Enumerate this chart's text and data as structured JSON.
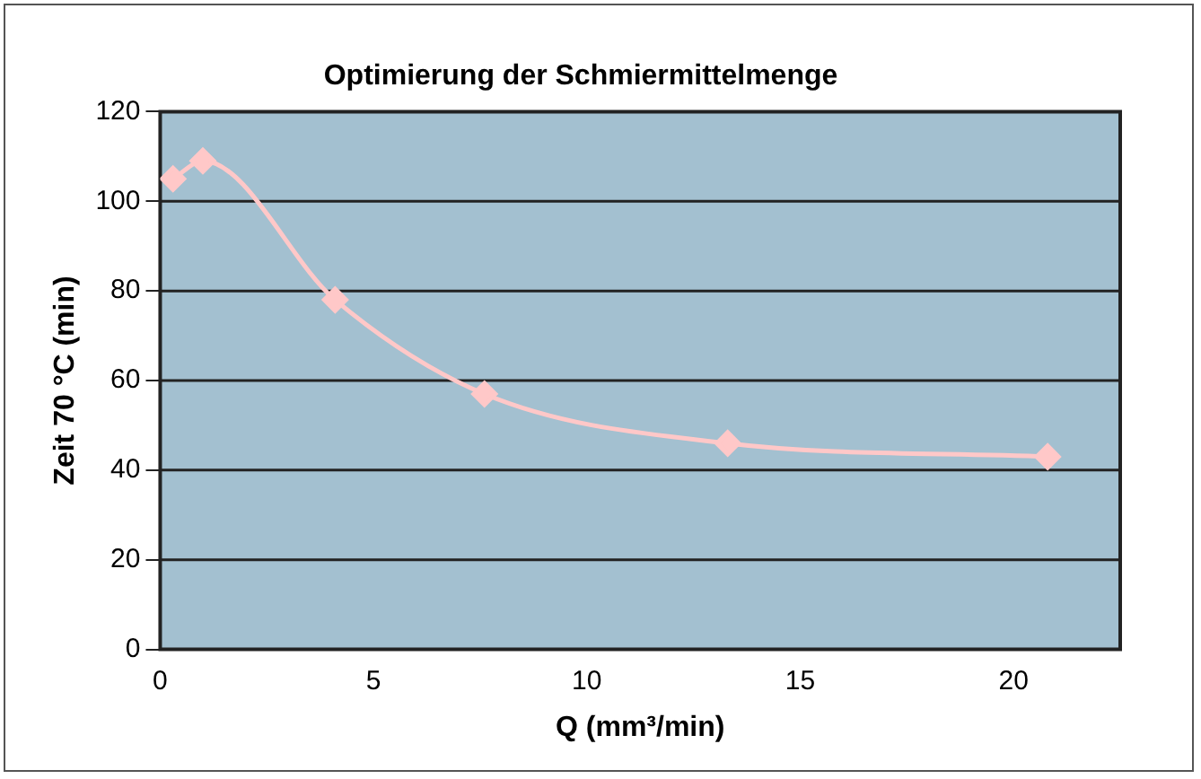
{
  "chart_data": {
    "type": "line",
    "title": "Optimierung der Schmiermittelmenge",
    "xlabel": "Q (mm³/min)",
    "ylabel": "Zeit 70 °C (min)",
    "x": [
      0.3,
      1.0,
      4.1,
      7.6,
      13.3,
      20.8
    ],
    "series": [
      {
        "color": "#ffc8c8",
        "values": [
          105,
          109,
          78,
          57,
          46,
          43
        ]
      }
    ],
    "xlim": [
      0,
      22.5
    ],
    "xticks": [
      0,
      5,
      10,
      15,
      20
    ],
    "ylim": [
      0,
      120
    ],
    "yticks": [
      0,
      20,
      40,
      60,
      80,
      100,
      120
    ],
    "grid": "y",
    "legend": false,
    "marker": "diamond",
    "line_style": "solid"
  }
}
